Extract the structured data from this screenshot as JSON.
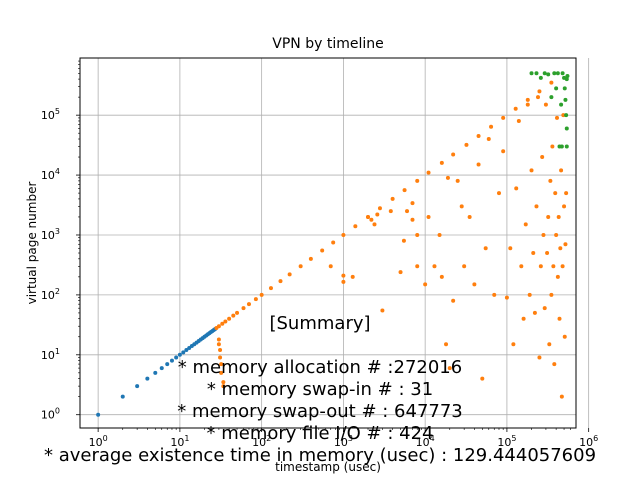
{
  "chart_data": {
    "type": "scatter",
    "title": "VPN by timeline",
    "xlabel": "timestamp (usec)",
    "ylabel": "virtual page number",
    "xscale": "log",
    "yscale": "log",
    "xlim": [
      0.6,
      700000
    ],
    "ylim": [
      0.6,
      900000
    ],
    "xticks": [
      {
        "value": 1,
        "base": "10",
        "exp": "0"
      },
      {
        "value": 10,
        "base": "10",
        "exp": "1"
      },
      {
        "value": 100,
        "base": "10",
        "exp": "2"
      },
      {
        "value": 1000,
        "base": "10",
        "exp": "3"
      },
      {
        "value": 10000,
        "base": "10",
        "exp": "4"
      },
      {
        "value": 100000,
        "base": "10",
        "exp": "5"
      },
      {
        "value": 1000000,
        "base": "10",
        "exp": "6"
      }
    ],
    "yticks": [
      {
        "value": 1,
        "base": "10",
        "exp": "0"
      },
      {
        "value": 10,
        "base": "10",
        "exp": "1"
      },
      {
        "value": 100,
        "base": "10",
        "exp": "2"
      },
      {
        "value": 1000,
        "base": "10",
        "exp": "3"
      },
      {
        "value": 10000,
        "base": "10",
        "exp": "4"
      },
      {
        "value": 100000,
        "base": "10",
        "exp": "5"
      }
    ],
    "grid": true,
    "colors": {
      "allocation": "#1f77b4",
      "swap": "#ff7f0e",
      "file_io": "#2ca02c"
    },
    "series": [
      {
        "color": "#1f77b4",
        "points": [
          [
            1,
            1
          ],
          [
            2,
            2
          ],
          [
            3,
            3
          ],
          [
            4,
            4
          ],
          [
            5,
            5
          ],
          [
            6,
            6
          ],
          [
            7,
            7
          ],
          [
            8,
            8
          ],
          [
            9,
            9
          ],
          [
            10,
            10
          ],
          [
            11,
            11
          ],
          [
            12,
            12
          ],
          [
            13,
            13
          ],
          [
            14,
            14
          ],
          [
            15,
            15
          ],
          [
            16,
            16
          ],
          [
            17,
            17
          ],
          [
            18,
            18
          ],
          [
            19,
            19
          ],
          [
            20,
            20
          ],
          [
            21,
            21
          ],
          [
            22,
            22
          ],
          [
            23,
            23
          ],
          [
            24,
            24
          ],
          [
            25,
            25
          ],
          [
            26,
            26
          ],
          [
            27,
            27
          ]
        ]
      },
      {
        "color": "#ff7f0e",
        "points": [
          [
            28,
            28
          ],
          [
            30,
            30
          ],
          [
            33,
            33
          ],
          [
            36,
            36
          ],
          [
            40,
            40
          ],
          [
            45,
            45
          ],
          [
            50,
            50
          ],
          [
            60,
            60
          ],
          [
            70,
            70
          ],
          [
            85,
            85
          ],
          [
            100,
            100
          ],
          [
            130,
            130
          ],
          [
            170,
            170
          ],
          [
            220,
            220
          ],
          [
            300,
            300
          ],
          [
            400,
            400
          ],
          [
            550,
            550
          ],
          [
            750,
            750
          ],
          [
            1000,
            1000
          ],
          [
            1400,
            1400
          ],
          [
            2000,
            2000
          ],
          [
            2800,
            2800
          ],
          [
            4000,
            4000
          ],
          [
            5600,
            5600
          ],
          [
            8000,
            8000
          ],
          [
            11000,
            11000
          ],
          [
            16000,
            16000
          ],
          [
            22000,
            22000
          ],
          [
            32000,
            32000
          ],
          [
            45000,
            45000
          ],
          [
            64000,
            64000
          ],
          [
            90000,
            90000
          ],
          [
            128000,
            128000
          ],
          [
            180000,
            180000
          ],
          [
            250000,
            250000
          ],
          [
            350000,
            350000
          ],
          [
            30,
            18
          ],
          [
            30,
            15
          ],
          [
            31,
            12
          ],
          [
            31,
            9
          ],
          [
            32,
            7
          ],
          [
            32,
            5
          ],
          [
            34,
            3.5
          ],
          [
            34,
            3
          ],
          [
            700,
            300
          ],
          [
            1000,
            210
          ],
          [
            1000,
            165
          ],
          [
            1300,
            200
          ],
          [
            2000,
            2000
          ],
          [
            2200,
            1800
          ],
          [
            2400,
            1500
          ],
          [
            2600,
            2200
          ],
          [
            3000,
            55
          ],
          [
            3800,
            2500
          ],
          [
            5000,
            240
          ],
          [
            5500,
            800
          ],
          [
            6000,
            2500
          ],
          [
            7000,
            1800
          ],
          [
            7000,
            3400
          ],
          [
            8000,
            300
          ],
          [
            8000,
            1000
          ],
          [
            10000,
            150
          ],
          [
            11000,
            2000
          ],
          [
            13000,
            300
          ],
          [
            15000,
            1000
          ],
          [
            16000,
            200
          ],
          [
            18000,
            15
          ],
          [
            19000,
            9000
          ],
          [
            20000,
            6
          ],
          [
            22000,
            80
          ],
          [
            25000,
            8000
          ],
          [
            28000,
            3000
          ],
          [
            30000,
            300
          ],
          [
            35000,
            2000
          ],
          [
            40000,
            150
          ],
          [
            45000,
            15000
          ],
          [
            50000,
            4
          ],
          [
            55000,
            600
          ],
          [
            60000,
            40000
          ],
          [
            70000,
            100
          ],
          [
            80000,
            5000
          ],
          [
            90000,
            25000
          ],
          [
            100000,
            90
          ],
          [
            110000,
            600
          ],
          [
            120000,
            15
          ],
          [
            130000,
            6000
          ],
          [
            140000,
            80000
          ],
          [
            150000,
            300
          ],
          [
            160000,
            40
          ],
          [
            170000,
            1500
          ],
          [
            180000,
            150000
          ],
          [
            190000,
            100
          ],
          [
            200000,
            12000
          ],
          [
            210000,
            500
          ],
          [
            220000,
            50
          ],
          [
            230000,
            3000
          ],
          [
            240000,
            200000
          ],
          [
            250000,
            9
          ],
          [
            260000,
            300
          ],
          [
            270000,
            20000
          ],
          [
            280000,
            1000
          ],
          [
            290000,
            60
          ],
          [
            300000,
            150000
          ],
          [
            310000,
            500
          ],
          [
            320000,
            2000
          ],
          [
            330000,
            15
          ],
          [
            340000,
            8000
          ],
          [
            350000,
            100
          ],
          [
            360000,
            30000
          ],
          [
            370000,
            300
          ],
          [
            380000,
            7
          ],
          [
            390000,
            5000
          ],
          [
            400000,
            1000
          ],
          [
            410000,
            90000
          ],
          [
            420000,
            200
          ],
          [
            430000,
            2000
          ],
          [
            440000,
            40
          ],
          [
            450000,
            600
          ],
          [
            460000,
            12000
          ],
          [
            470000,
            2
          ],
          [
            480000,
            300
          ],
          [
            490000,
            100000
          ],
          [
            500000,
            3000
          ],
          [
            510000,
            20
          ],
          [
            520000,
            700
          ],
          [
            530000,
            5000
          ]
        ]
      },
      {
        "color": "#2ca02c",
        "points": [
          [
            200000,
            500000
          ],
          [
            230000,
            500000
          ],
          [
            260000,
            420000
          ],
          [
            290000,
            500000
          ],
          [
            320000,
            480000
          ],
          [
            350000,
            200000
          ],
          [
            380000,
            500000
          ],
          [
            400000,
            280000
          ],
          [
            420000,
            500000
          ],
          [
            440000,
            30000
          ],
          [
            460000,
            150000
          ],
          [
            470000,
            30000
          ],
          [
            480000,
            500000
          ],
          [
            500000,
            420000
          ],
          [
            510000,
            280000
          ],
          [
            520000,
            180000
          ],
          [
            530000,
            100000
          ],
          [
            540000,
            60000
          ],
          [
            540000,
            400000
          ],
          [
            540000,
            30000
          ],
          [
            550000,
            450000
          ]
        ]
      }
    ]
  },
  "summary": {
    "heading": "[Summary]",
    "lines": [
      "* memory allocation # :272016",
      "* memory swap-in # : 31",
      "* memory swap-out # : 647773",
      "* memory file I/O # : 424",
      "* average existence time in memory (usec) : 129.444057609"
    ]
  }
}
